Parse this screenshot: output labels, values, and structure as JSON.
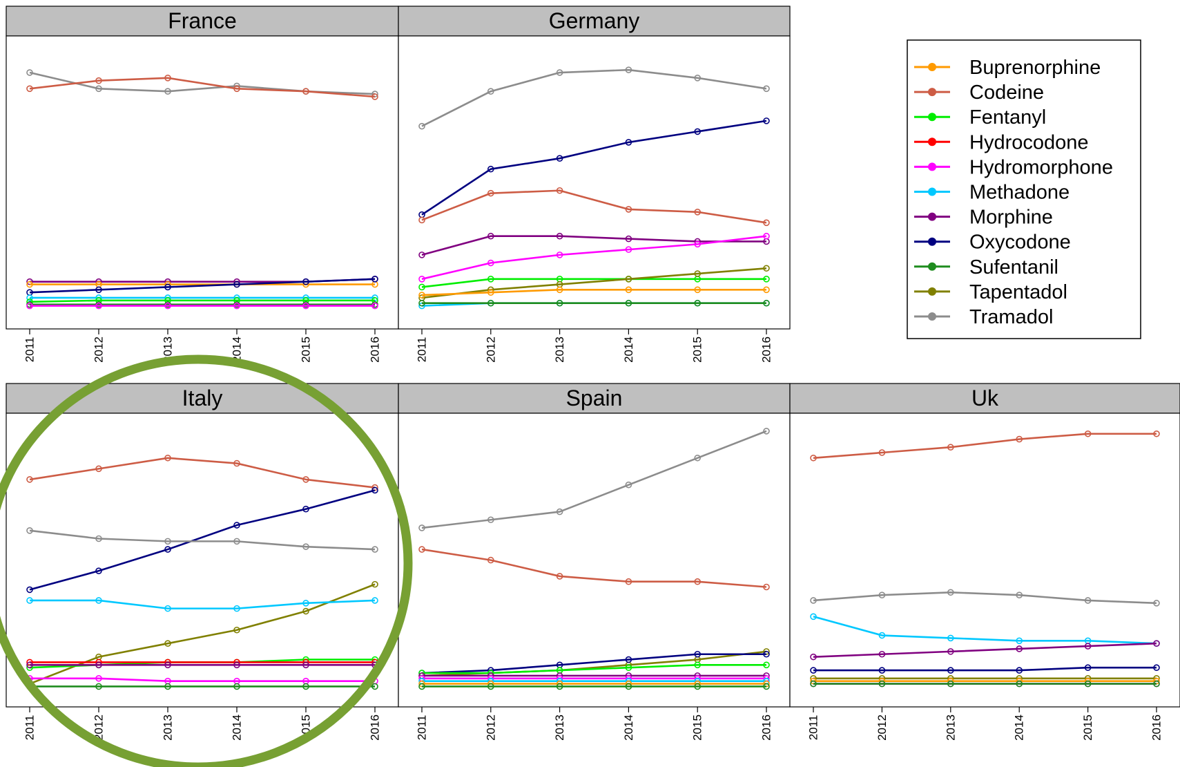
{
  "chart_data": {
    "type": "line",
    "layout": "faceted small multiples, shared y-axis scale per panel (no y-axis labels shown)",
    "grid": false,
    "legend_position": "right",
    "x": [
      2011,
      2012,
      2013,
      2014,
      2015,
      2016
    ],
    "series_colors": {
      "Buprenorphine": "#ff9a00",
      "Codeine": "#cd5c45",
      "Fentanyl": "#00ee00",
      "Hydrocodone": "#ff0000",
      "Hydromorphone": "#ff00ff",
      "Methadone": "#00c8ff",
      "Morphine": "#800080",
      "Oxycodone": "#000080",
      "Sufentanil": "#1e8c1e",
      "Tapentadol": "#808000",
      "Tramadol": "#8c8c8c"
    },
    "legend": [
      "Buprenorphine",
      "Codeine",
      "Fentanyl",
      "Hydrocodone",
      "Hydromorphone",
      "Methadone",
      "Morphine",
      "Oxycodone",
      "Sufentanil",
      "Tapentadol",
      "Tramadol"
    ],
    "annotation": {
      "type": "circle",
      "target": "Italy",
      "color": "#77a033"
    },
    "panels": [
      {
        "title": "France",
        "series": [
          {
            "name": "Tramadol",
            "values": [
              92,
              86,
              85,
              87,
              85,
              84
            ]
          },
          {
            "name": "Codeine",
            "values": [
              86,
              89,
              90,
              86,
              85,
              83
            ]
          },
          {
            "name": "Morphine",
            "values": [
              14,
              14,
              14,
              14,
              14,
              15
            ]
          },
          {
            "name": "Buprenorphine",
            "values": [
              13,
              13,
              13,
              13,
              13,
              13
            ]
          },
          {
            "name": "Oxycodone",
            "values": [
              10,
              11,
              12,
              13,
              14,
              15
            ]
          },
          {
            "name": "Methadone",
            "values": [
              8,
              8,
              8,
              8,
              8,
              8
            ]
          },
          {
            "name": "Fentanyl",
            "values": [
              6.5,
              7,
              7,
              7,
              7,
              7
            ]
          },
          {
            "name": "Sufentanil",
            "values": [
              5.5,
              5.5,
              5.5,
              5.5,
              5.5,
              5.5
            ]
          },
          {
            "name": "Hydromorphone",
            "values": [
              5,
              5,
              5,
              5,
              5,
              5
            ]
          }
        ]
      },
      {
        "title": "Germany",
        "series": [
          {
            "name": "Tramadol",
            "values": [
              72,
              85,
              92,
              93,
              90,
              86
            ]
          },
          {
            "name": "Oxycodone",
            "values": [
              39,
              56,
              60,
              66,
              70,
              74
            ]
          },
          {
            "name": "Codeine",
            "values": [
              37,
              47,
              48,
              41,
              40,
              36
            ]
          },
          {
            "name": "Morphine",
            "values": [
              24,
              31,
              31,
              30,
              29,
              29
            ]
          },
          {
            "name": "Hydromorphone",
            "values": [
              15,
              21,
              24,
              26,
              28,
              31
            ]
          },
          {
            "name": "Fentanyl",
            "values": [
              12,
              15,
              15,
              15,
              15,
              15
            ]
          },
          {
            "name": "Tapentadol",
            "values": [
              8,
              11,
              13,
              15,
              17,
              19
            ]
          },
          {
            "name": "Buprenorphine",
            "values": [
              9,
              10,
              11,
              11,
              11,
              11
            ]
          },
          {
            "name": "Methadone",
            "values": [
              5,
              6,
              6,
              6,
              6,
              6
            ]
          },
          {
            "name": "Sufentanil",
            "values": [
              6,
              6,
              6,
              6,
              6,
              6
            ]
          }
        ]
      },
      {
        "title": "Italy",
        "series": [
          {
            "name": "Codeine",
            "values": [
              81,
              85,
              89,
              87,
              81,
              78
            ]
          },
          {
            "name": "Oxycodone",
            "values": [
              40,
              47,
              55,
              64,
              70,
              77
            ]
          },
          {
            "name": "Tramadol",
            "values": [
              62,
              59,
              58,
              58,
              56,
              55
            ]
          },
          {
            "name": "Tapentadol",
            "values": [
              5,
              15,
              20,
              25,
              32,
              42
            ]
          },
          {
            "name": "Methadone",
            "values": [
              36,
              36,
              33,
              33,
              35,
              36
            ]
          },
          {
            "name": "Fentanyl",
            "values": [
              11,
              12,
              13,
              13,
              14,
              14
            ]
          },
          {
            "name": "Hydrocodone",
            "values": [
              13,
              13,
              13,
              13,
              13,
              13
            ]
          },
          {
            "name": "Morphine",
            "values": [
              12,
              12,
              12,
              12,
              12,
              12
            ]
          },
          {
            "name": "Hydromorphone",
            "values": [
              7,
              7,
              6,
              6,
              6,
              6
            ]
          },
          {
            "name": "Sufentanil",
            "values": [
              4,
              4,
              4,
              4,
              4,
              4
            ]
          }
        ]
      },
      {
        "title": "Spain",
        "series": [
          {
            "name": "Tramadol",
            "values": [
              63,
              66,
              69,
              79,
              89,
              99
            ]
          },
          {
            "name": "Codeine",
            "values": [
              55,
              51,
              45,
              43,
              43,
              41
            ]
          },
          {
            "name": "Tapentadol",
            "values": [
              8,
              9,
              10,
              12,
              14,
              17
            ]
          },
          {
            "name": "Oxycodone",
            "values": [
              9,
              10,
              12,
              14,
              16,
              16
            ]
          },
          {
            "name": "Fentanyl",
            "values": [
              9,
              9,
              10,
              11,
              12,
              12
            ]
          },
          {
            "name": "Morphine",
            "values": [
              8,
              8,
              8,
              8,
              8,
              8
            ]
          },
          {
            "name": "Hydromorphone",
            "values": [
              7,
              7,
              7,
              7,
              7,
              7
            ]
          },
          {
            "name": "Methadone",
            "values": [
              6,
              6,
              6,
              6,
              6,
              6
            ]
          },
          {
            "name": "Buprenorphine",
            "values": [
              5,
              5,
              5,
              5,
              5,
              5
            ]
          },
          {
            "name": "Sufentanil",
            "values": [
              4,
              4,
              4,
              4,
              4,
              4
            ]
          }
        ]
      },
      {
        "title": "Uk",
        "series": [
          {
            "name": "Codeine",
            "values": [
              89,
              91,
              93,
              96,
              98,
              98
            ]
          },
          {
            "name": "Tramadol",
            "values": [
              36,
              38,
              39,
              38,
              36,
              35
            ]
          },
          {
            "name": "Methadone",
            "values": [
              30,
              23,
              22,
              21,
              21,
              20
            ]
          },
          {
            "name": "Morphine",
            "values": [
              15,
              16,
              17,
              18,
              19,
              20
            ]
          },
          {
            "name": "Oxycodone",
            "values": [
              10,
              10,
              10,
              10,
              11,
              11
            ]
          },
          {
            "name": "Tapentadol",
            "values": [
              7,
              7,
              7,
              7,
              7,
              7
            ]
          },
          {
            "name": "Buprenorphine",
            "values": [
              6,
              6,
              6,
              6,
              6,
              6
            ]
          },
          {
            "name": "Hydromorphone",
            "values": [
              5,
              5,
              5,
              5,
              5,
              5
            ]
          },
          {
            "name": "Sufentanil",
            "values": [
              5,
              5,
              5,
              5,
              5,
              5
            ]
          }
        ]
      }
    ]
  }
}
